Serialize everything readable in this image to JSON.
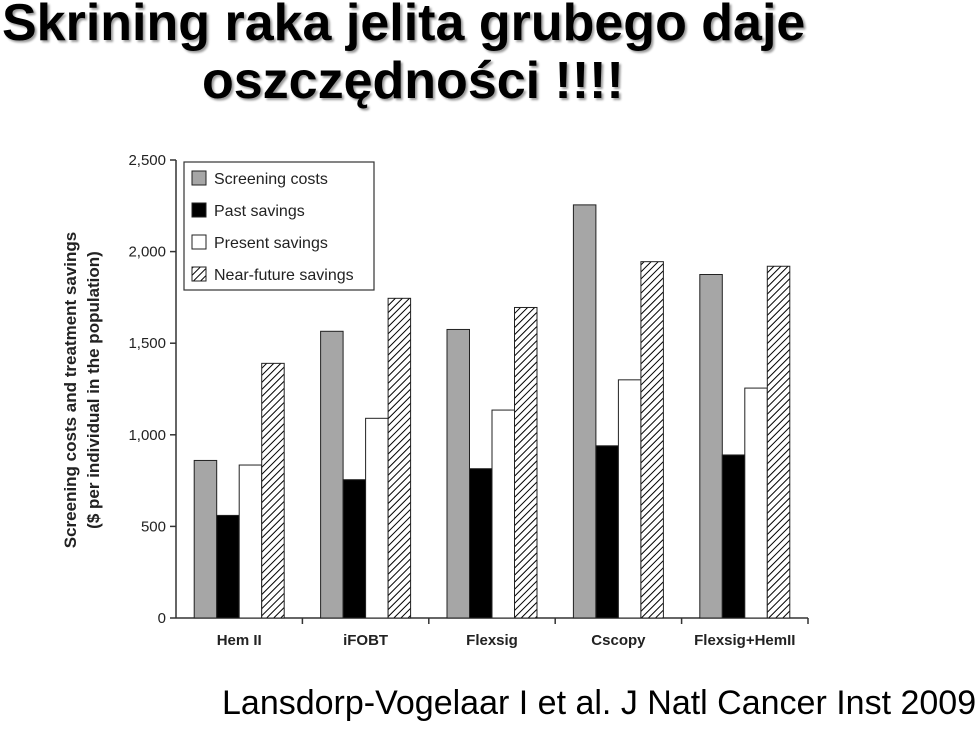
{
  "slide": {
    "title_line1": "Skrining raka jelita grubego daje",
    "title_line2": "oszczędności  !!!!",
    "citation": "Lansdorp-Vogelaar I et al. J Natl Cancer Inst 2009"
  },
  "chart_data": {
    "type": "bar",
    "title": "",
    "xlabel": "",
    "ylabel_line1": "Screening costs and treatment savings",
    "ylabel_line2": "($ per individual in the population)",
    "ylim": [
      0,
      2500
    ],
    "yticks": [
      0,
      500,
      1000,
      1500,
      2000,
      2500
    ],
    "ytick_labels": [
      "0",
      "500",
      "1,000",
      "1,500",
      "2,000",
      "2,500"
    ],
    "grid": false,
    "legend_position": "top-left",
    "categories": [
      "Hem II",
      "iFOBT",
      "Flexsig",
      "Cscopy",
      "Flexsig+HemII"
    ],
    "series": [
      {
        "name": "Screening costs",
        "fill": "#a6a6a6",
        "pattern": "solid",
        "values": [
          860,
          1565,
          1575,
          2255,
          1875
        ]
      },
      {
        "name": "Past savings",
        "fill": "#000000",
        "pattern": "solid",
        "values": [
          560,
          755,
          815,
          940,
          890
        ]
      },
      {
        "name": "Present savings",
        "fill": "#ffffff",
        "pattern": "solid",
        "values": [
          835,
          1090,
          1135,
          1300,
          1255
        ]
      },
      {
        "name": "Near-future savings",
        "fill": "#ffffff",
        "pattern": "hatch",
        "values": [
          1390,
          1745,
          1695,
          1945,
          1920
        ]
      }
    ]
  }
}
